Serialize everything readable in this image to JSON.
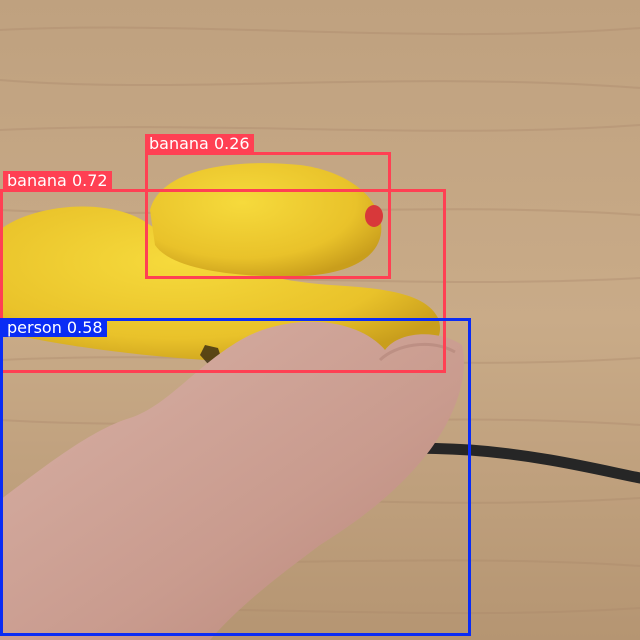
{
  "colors": {
    "banana_box": "#ff4053",
    "person_box": "#0a2cf5",
    "tag_text": "#ffffff"
  },
  "scene": {
    "background": "wood-table",
    "objects": [
      "rubber-duck",
      "hand",
      "black-cable"
    ]
  },
  "detections": [
    {
      "label": "banana 0.26",
      "class": "banana",
      "confidence": 0.26
    },
    {
      "label": "banana 0.72",
      "class": "banana",
      "confidence": 0.72
    },
    {
      "label": "person 0.58",
      "class": "person",
      "confidence": 0.58
    }
  ]
}
